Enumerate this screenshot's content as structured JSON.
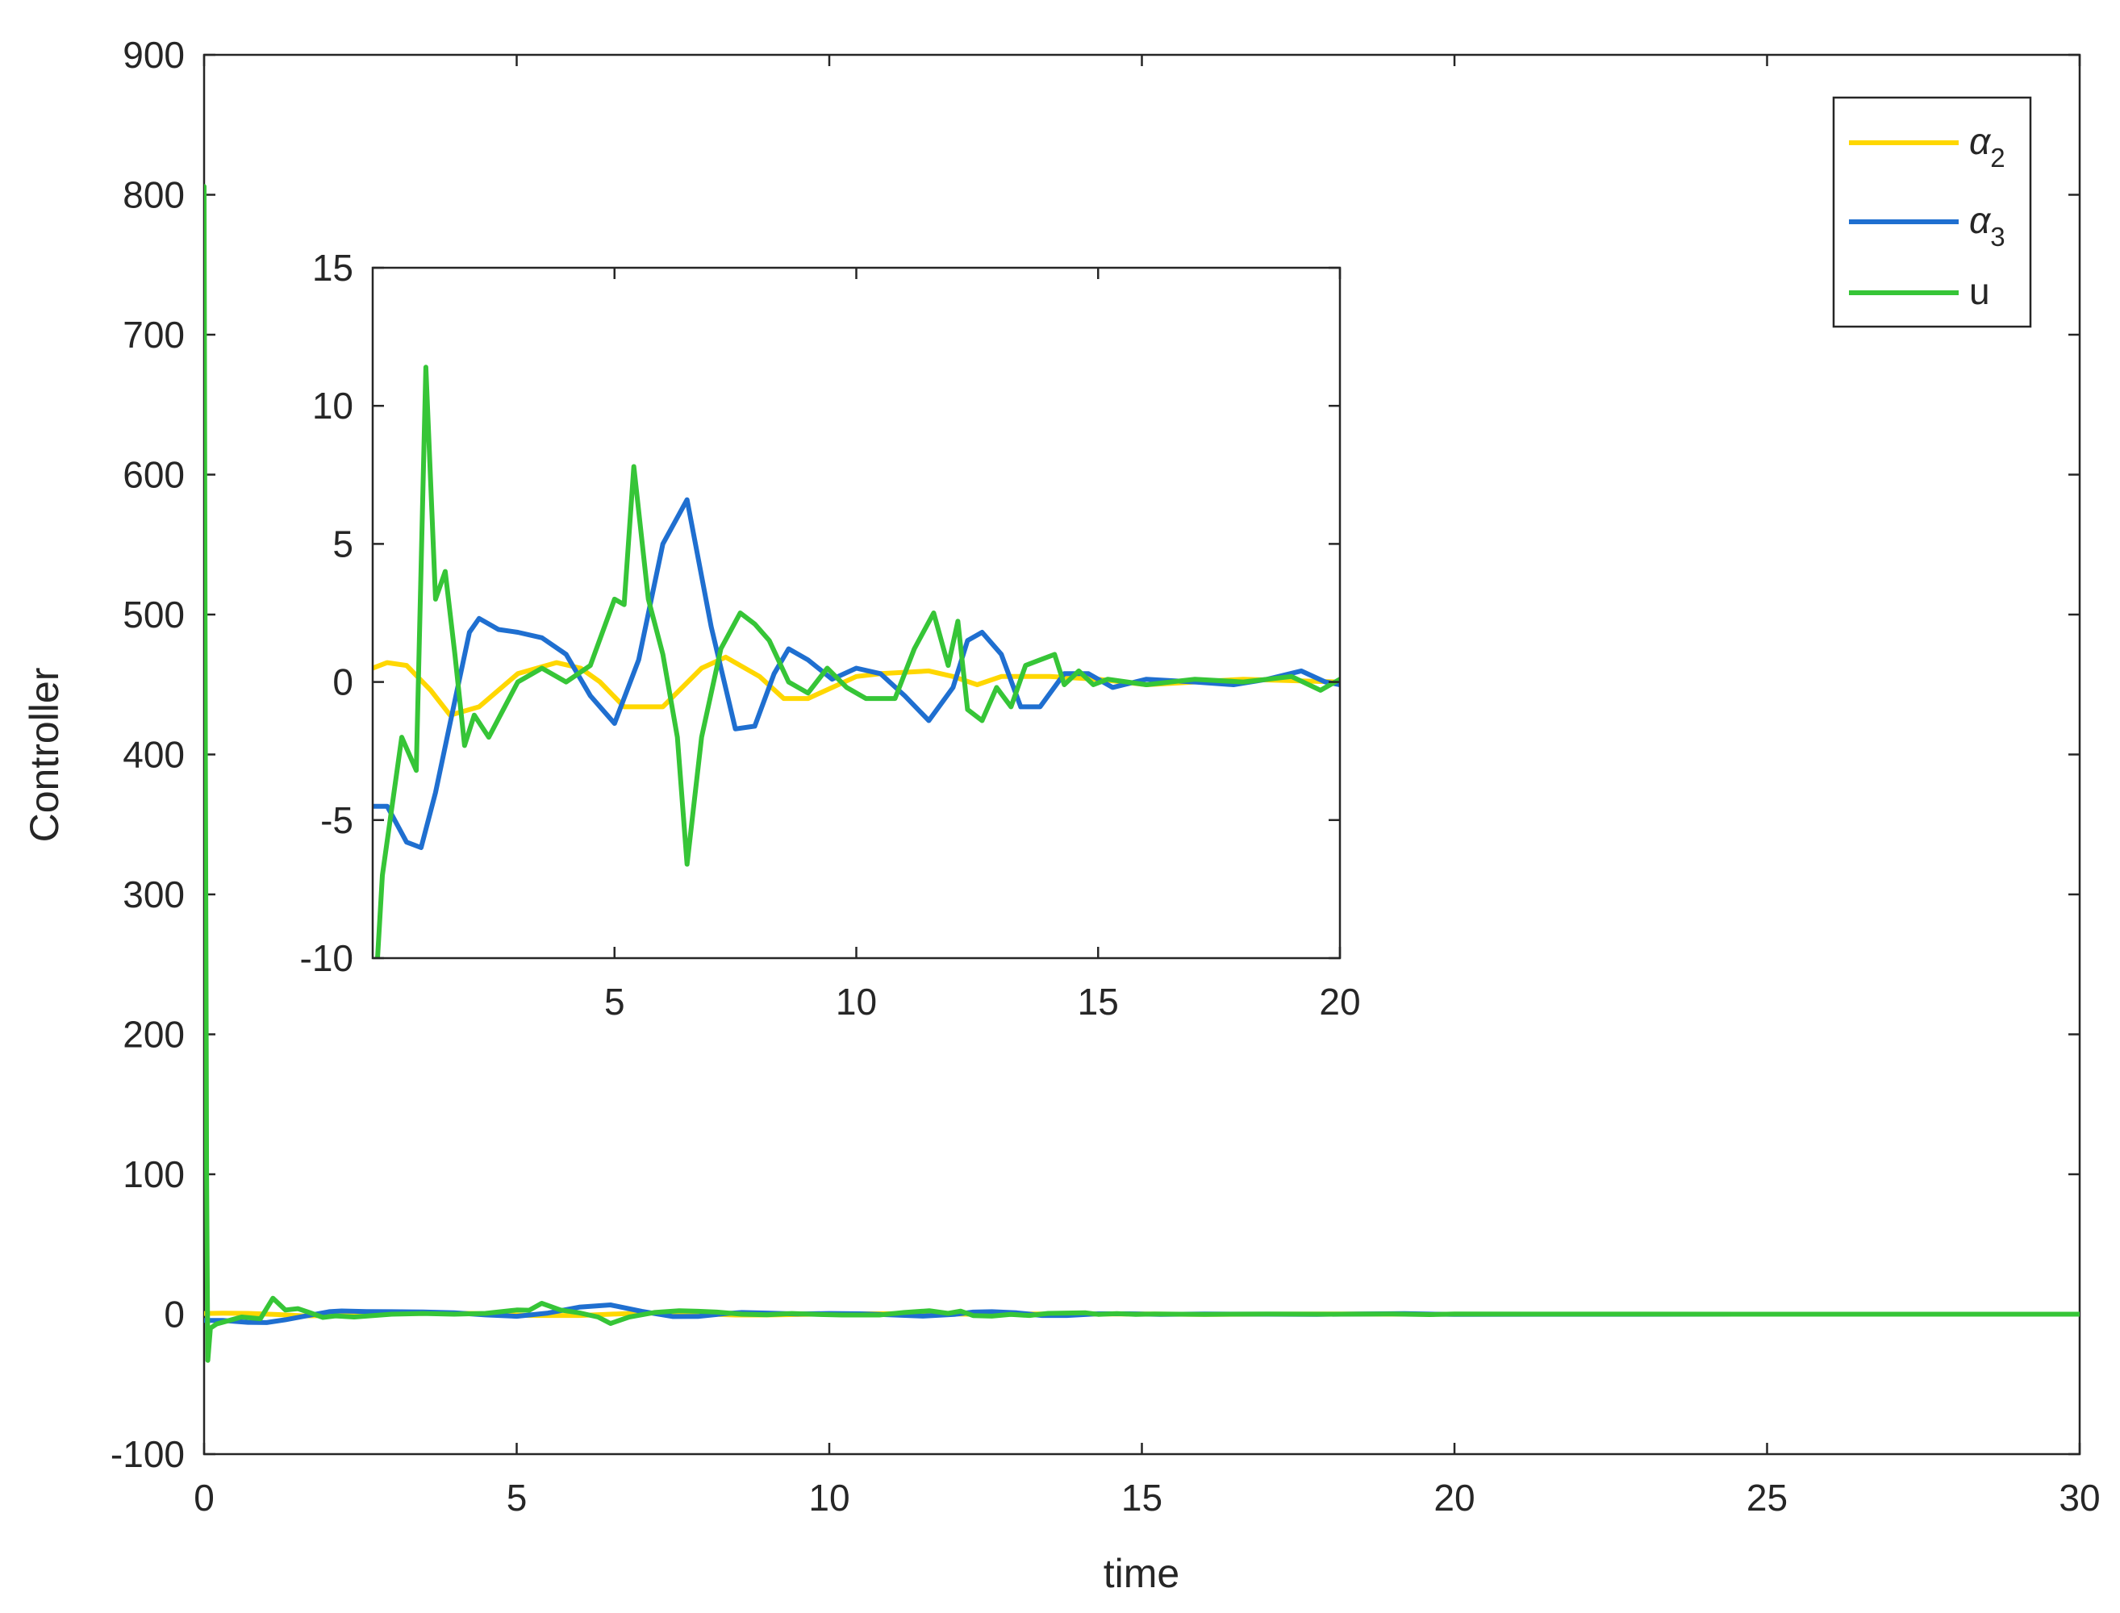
{
  "chart_data": [
    {
      "type": "line",
      "xlabel": "time",
      "ylabel": "Controller",
      "xlim": [
        0,
        30
      ],
      "ylim": [
        -100,
        900
      ],
      "x_ticks": [
        0,
        5,
        10,
        15,
        20,
        25,
        30
      ],
      "y_ticks": [
        -100,
        0,
        100,
        200,
        300,
        400,
        500,
        600,
        700,
        800,
        900
      ],
      "x_tick_labels": [
        "0",
        "5",
        "10",
        "15",
        "20",
        "25",
        "30"
      ],
      "y_tick_labels": [
        "-100",
        "0",
        "100",
        "200",
        "300",
        "400",
        "500",
        "600",
        "700",
        "800",
        "900"
      ],
      "grid": false,
      "legend_position": "top-right",
      "series": [
        {
          "name": "α2",
          "label_main": "α",
          "label_sub": "2",
          "color": "#FFD700",
          "x": [
            0,
            0.3,
            0.7,
            1.2,
            1.6,
            2.2,
            3.0,
            3.8,
            4.3,
            4.7,
            5.2,
            6.0,
            6.8,
            7.3,
            8.0,
            8.5,
            9.0,
            10.0,
            10.5,
            11.5,
            12.0,
            12.5,
            13.0,
            14.0,
            15.0,
            16.0,
            17.0,
            18.0,
            20.0,
            30.0
          ],
          "y": [
            0.5,
            0.7,
            0.6,
            -0.3,
            -1.2,
            -0.9,
            0.3,
            0.7,
            0.5,
            0.0,
            -0.9,
            -0.9,
            0.5,
            0.9,
            0.2,
            -0.6,
            -0.6,
            0.2,
            0.3,
            0.4,
            0.2,
            -0.1,
            0.2,
            0.2,
            0.1,
            -0.1,
            0.0,
            0.1,
            0.0,
            0.0
          ]
        },
        {
          "name": "α3",
          "label_main": "α",
          "label_sub": "3",
          "color": "#1F6FD0",
          "x": [
            0,
            0.3,
            0.7,
            1.0,
            1.3,
            1.6,
            2.0,
            2.2,
            2.6,
            3.0,
            3.5,
            4.0,
            4.5,
            5.0,
            5.5,
            6.0,
            6.5,
            7.0,
            7.5,
            7.9,
            8.3,
            8.6,
            9.0,
            9.5,
            10.0,
            10.5,
            11.0,
            11.5,
            12.0,
            12.3,
            12.6,
            13.0,
            13.4,
            13.8,
            14.3,
            14.8,
            15.3,
            16.0,
            17.0,
            17.8,
            18.5,
            19.2,
            19.7,
            20.0,
            25.0,
            30.0
          ],
          "y": [
            -4.5,
            -4.5,
            -5.8,
            -6.0,
            -4.0,
            -1.5,
            1.8,
            2.3,
            1.9,
            1.8,
            1.6,
            1.0,
            -0.5,
            -1.5,
            0.8,
            5.0,
            6.6,
            2.0,
            -1.7,
            -1.6,
            0.3,
            1.2,
            0.8,
            0.1,
            0.5,
            0.3,
            -0.5,
            -1.4,
            -0.2,
            1.5,
            1.8,
            1.0,
            -0.9,
            -0.9,
            0.3,
            0.3,
            -0.2,
            0.1,
            0.0,
            -0.1,
            0.1,
            0.4,
            0.0,
            -0.1,
            0.0,
            0.0
          ]
        },
        {
          "name": "u",
          "label_main": "u",
          "label_sub": "",
          "color": "#36C537",
          "x": [
            0,
            0.02,
            0.04,
            0.06,
            0.1,
            0.2,
            0.4,
            0.6,
            0.9,
            1.1,
            1.3,
            1.5,
            1.7,
            1.9,
            2.1,
            2.4,
            2.7,
            3.0,
            3.5,
            4.0,
            4.5,
            5.0,
            5.2,
            5.4,
            5.7,
            6.0,
            6.3,
            6.5,
            6.8,
            7.2,
            7.6,
            7.9,
            8.2,
            8.6,
            9.0,
            9.4,
            9.8,
            10.2,
            10.8,
            11.2,
            11.6,
            11.9,
            12.1,
            12.3,
            12.6,
            12.9,
            13.2,
            13.5,
            13.8,
            14.1,
            14.3,
            14.6,
            14.9,
            15.2,
            15.6,
            16.0,
            17.0,
            18.0,
            19.0,
            19.6,
            20.0,
            25.0,
            30.0
          ],
          "y": [
            806,
            400,
            100,
            -33,
            -10,
            -7.0,
            -4.5,
            -2.0,
            -3.2,
            11.4,
            3.0,
            4.0,
            1.0,
            -2.3,
            -1.2,
            -2.0,
            -1.0,
            0.0,
            0.5,
            0.0,
            0.6,
            3.0,
            2.8,
            7.8,
            3.0,
            1.0,
            -2.0,
            -6.6,
            -2.0,
            1.2,
            2.5,
            2.1,
            1.5,
            0.0,
            -0.4,
            0.5,
            -0.2,
            -0.6,
            -0.6,
            1.2,
            2.5,
            0.6,
            2.2,
            -1.0,
            -1.4,
            -0.2,
            -0.9,
            0.6,
            0.8,
            1.0,
            -0.1,
            0.4,
            -0.1,
            0.1,
            0.0,
            -0.1,
            0.1,
            0.0,
            0.2,
            -0.3,
            0.1,
            0.0,
            0.0
          ]
        }
      ]
    },
    {
      "type": "line",
      "inset": true,
      "xlim": [
        0,
        20
      ],
      "ylim": [
        -10,
        15
      ],
      "x_ticks": [
        5,
        10,
        15,
        20
      ],
      "y_ticks": [
        -10,
        -5,
        0,
        5,
        10,
        15
      ],
      "x_tick_labels": [
        "5",
        "10",
        "15",
        "20"
      ],
      "y_tick_labels": [
        "-10",
        "-5",
        "0",
        "5",
        "10",
        "15"
      ],
      "grid": false,
      "series_ref": "same series as main plot, zoomed view"
    }
  ],
  "colors": {
    "axes": "#262626",
    "background": "#ffffff"
  }
}
